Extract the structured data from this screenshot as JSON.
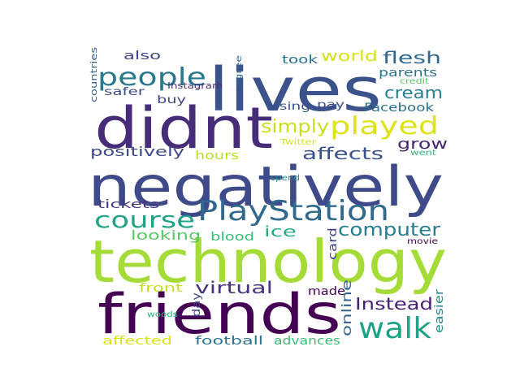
{
  "words": [
    {
      "text": "technology",
      "color": "#a5db36",
      "rotate": false
    },
    {
      "text": "negatively",
      "color": "#3e4a89",
      "rotate": false
    },
    {
      "text": "friends",
      "color": "#440154",
      "rotate": false
    },
    {
      "text": "didnt",
      "color": "#472c7a",
      "rotate": false
    },
    {
      "text": "lives",
      "color": "#3b528b",
      "rotate": false
    },
    {
      "text": "PlayStation",
      "color": "#31688e",
      "rotate": false
    },
    {
      "text": "walk",
      "color": "#1fa187",
      "rotate": false
    },
    {
      "text": "people",
      "color": "#2a788e",
      "rotate": false
    },
    {
      "text": "course",
      "color": "#20a386",
      "rotate": false
    },
    {
      "text": "played",
      "color": "#dde318",
      "rotate": false
    },
    {
      "text": "computer",
      "color": "#287d8e",
      "rotate": false
    },
    {
      "text": "simply",
      "color": "#c8e020",
      "rotate": false
    },
    {
      "text": "affects",
      "color": "#3b518b",
      "rotate": false
    },
    {
      "text": "flesh",
      "color": "#31688e",
      "rotate": false
    },
    {
      "text": "cream",
      "color": "#277f8e",
      "rotate": false
    },
    {
      "text": "virtual",
      "color": "#46337e",
      "rotate": false
    },
    {
      "text": "Instead",
      "color": "#482071",
      "rotate": false
    },
    {
      "text": "world",
      "color": "#d2e21b",
      "rotate": false
    },
    {
      "text": "grow",
      "color": "#482475",
      "rotate": false
    },
    {
      "text": "ice",
      "color": "#25ab82",
      "rotate": false
    },
    {
      "text": "positively",
      "color": "#3f4788",
      "rotate": false
    },
    {
      "text": "looking",
      "color": "#56c667",
      "rotate": false
    },
    {
      "text": "online",
      "color": "#33638d",
      "rotate": true
    },
    {
      "text": "parents",
      "color": "#2c728e",
      "rotate": false
    },
    {
      "text": "Facebook",
      "color": "#2d708e",
      "rotate": false
    },
    {
      "text": "also",
      "color": "#404387",
      "rotate": false
    },
    {
      "text": "football",
      "color": "#2c738e",
      "rotate": false
    },
    {
      "text": "advances",
      "color": "#3bbb75",
      "rotate": false
    },
    {
      "text": "affected",
      "color": "#d8e219",
      "rotate": false
    },
    {
      "text": "easier",
      "color": "#238a8d",
      "rotate": true
    },
    {
      "text": "front",
      "color": "#c2df23",
      "rotate": false
    },
    {
      "text": "blood",
      "color": "#3dbc74",
      "rotate": false
    },
    {
      "text": "hours",
      "color": "#b5de2b",
      "rotate": false
    },
    {
      "text": "tickets",
      "color": "#453781",
      "rotate": false
    },
    {
      "text": "card",
      "color": "#414487",
      "rotate": true
    },
    {
      "text": "made",
      "color": "#440154",
      "rotate": false
    },
    {
      "text": "took",
      "color": "#2c728e",
      "rotate": false
    },
    {
      "text": "safer",
      "color": "#3e4a89",
      "rotate": false
    },
    {
      "text": "buy",
      "color": "#424186",
      "rotate": false
    },
    {
      "text": "pay",
      "color": "#3e4c8a",
      "rotate": false
    },
    {
      "text": "using",
      "color": "#39568c",
      "rotate": false
    },
    {
      "text": "day",
      "color": "#3f4788",
      "rotate": true
    },
    {
      "text": "Instagram",
      "color": "#472d7b",
      "rotate": false
    },
    {
      "text": "countries",
      "color": "#33638d",
      "rotate": true
    },
    {
      "text": "agree",
      "color": "#33638d",
      "rotate": true
    },
    {
      "text": "credit",
      "color": "#5cc863",
      "rotate": false
    },
    {
      "text": "Twitter",
      "color": "#d2e21b",
      "rotate": false
    },
    {
      "text": "went",
      "color": "#35b779",
      "rotate": false
    },
    {
      "text": "spend",
      "color": "#21908d",
      "rotate": false
    },
    {
      "text": "movie",
      "color": "#440154",
      "rotate": false
    },
    {
      "text": "woods",
      "color": "#2fb47c",
      "rotate": false
    }
  ]
}
